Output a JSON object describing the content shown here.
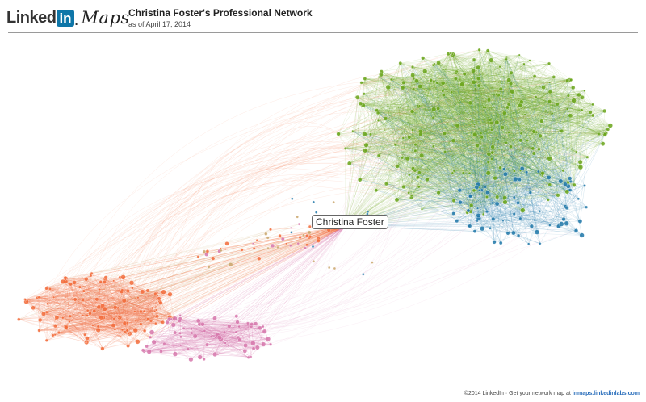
{
  "header": {
    "logo_linked": "Linked",
    "logo_in": "in",
    "logo_dot": ".",
    "logo_maps": "Maps",
    "title": "Christina Foster's Professional Network",
    "date": "as of April 17, 2014"
  },
  "network": {
    "center_node_label": "Christina Foster",
    "colors": {
      "green": "#6aa51a",
      "blue": "#1f77a8",
      "orange": "#f26b3a",
      "pink": "#d677ab",
      "tan": "#c9a46a"
    }
  },
  "footer": {
    "text": "©2014 LinkedIn · Get your network map at ",
    "link": "inmaps.linkedinlabs.com"
  }
}
